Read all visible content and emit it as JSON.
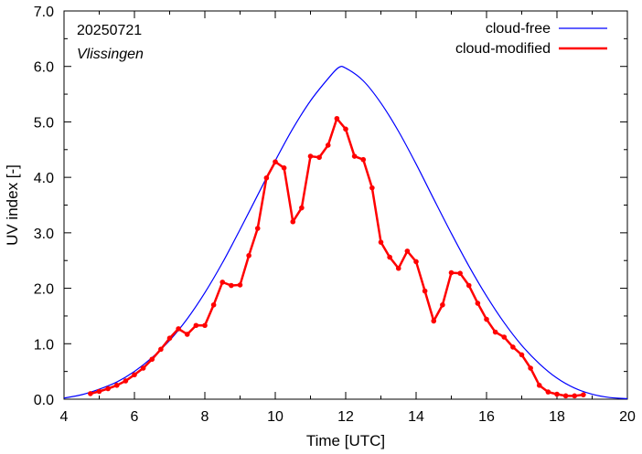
{
  "chart_data": {
    "type": "line",
    "xlabel": "Time  [UTC]",
    "ylabel": "UV index  [-]",
    "xlim": [
      4,
      20
    ],
    "ylim": [
      0,
      7
    ],
    "xticks": [
      4,
      6,
      8,
      10,
      12,
      14,
      16,
      18,
      20
    ],
    "yticks": [
      "0.0",
      "1.0",
      "2.0",
      "3.0",
      "4.0",
      "5.0",
      "6.0",
      "7.0"
    ],
    "grid": false,
    "legend_position": "top-right",
    "annotations": [
      "20250721",
      "Vlissingen"
    ],
    "series": [
      {
        "name": "cloud-free",
        "color": "#0000ff",
        "markers": false,
        "x": [
          4.0,
          4.5,
          5.0,
          5.5,
          6.0,
          6.5,
          7.0,
          7.5,
          8.0,
          8.5,
          9.0,
          9.5,
          10.0,
          10.5,
          11.0,
          11.5,
          11.8,
          12.0,
          12.5,
          13.0,
          13.5,
          14.0,
          14.5,
          15.0,
          15.5,
          16.0,
          16.5,
          17.0,
          17.5,
          18.0,
          18.5,
          19.0,
          19.5,
          20.0
        ],
        "y": [
          0.02,
          0.08,
          0.18,
          0.31,
          0.5,
          0.75,
          1.06,
          1.45,
          1.92,
          2.46,
          3.06,
          3.68,
          4.3,
          4.88,
          5.38,
          5.78,
          5.98,
          5.97,
          5.74,
          5.34,
          4.83,
          4.24,
          3.61,
          2.99,
          2.4,
          1.86,
          1.38,
          0.97,
          0.64,
          0.38,
          0.2,
          0.09,
          0.03,
          0.01
        ]
      },
      {
        "name": "cloud-modified",
        "color": "#ff0000",
        "markers": true,
        "x": [
          4.75,
          5.0,
          5.25,
          5.5,
          5.75,
          6.0,
          6.25,
          6.5,
          6.75,
          7.0,
          7.25,
          7.5,
          7.75,
          8.0,
          8.25,
          8.5,
          8.75,
          9.0,
          9.25,
          9.5,
          9.75,
          10.0,
          10.25,
          10.5,
          10.75,
          11.0,
          11.25,
          11.5,
          11.75,
          12.0,
          12.25,
          12.5,
          12.75,
          13.0,
          13.25,
          13.5,
          13.75,
          14.0,
          14.25,
          14.5,
          14.75,
          15.0,
          15.25,
          15.5,
          15.75,
          16.0,
          16.25,
          16.5,
          16.75,
          17.0,
          17.25,
          17.5,
          17.75,
          18.0,
          18.25,
          18.5,
          18.75
        ],
        "y": [
          0.1,
          0.14,
          0.19,
          0.25,
          0.33,
          0.44,
          0.56,
          0.72,
          0.9,
          1.1,
          1.27,
          1.17,
          1.33,
          1.33,
          1.7,
          2.11,
          2.05,
          2.06,
          2.59,
          3.08,
          3.99,
          4.28,
          4.17,
          3.2,
          3.45,
          4.38,
          4.36,
          4.58,
          5.06,
          4.87,
          4.38,
          4.32,
          3.81,
          2.83,
          2.56,
          2.36,
          2.67,
          2.48,
          1.95,
          1.41,
          1.7,
          2.28,
          2.27,
          2.05,
          1.73,
          1.44,
          1.21,
          1.12,
          0.94,
          0.8,
          0.56,
          0.25,
          0.13,
          0.09,
          0.06,
          0.06,
          0.08
        ]
      }
    ]
  }
}
